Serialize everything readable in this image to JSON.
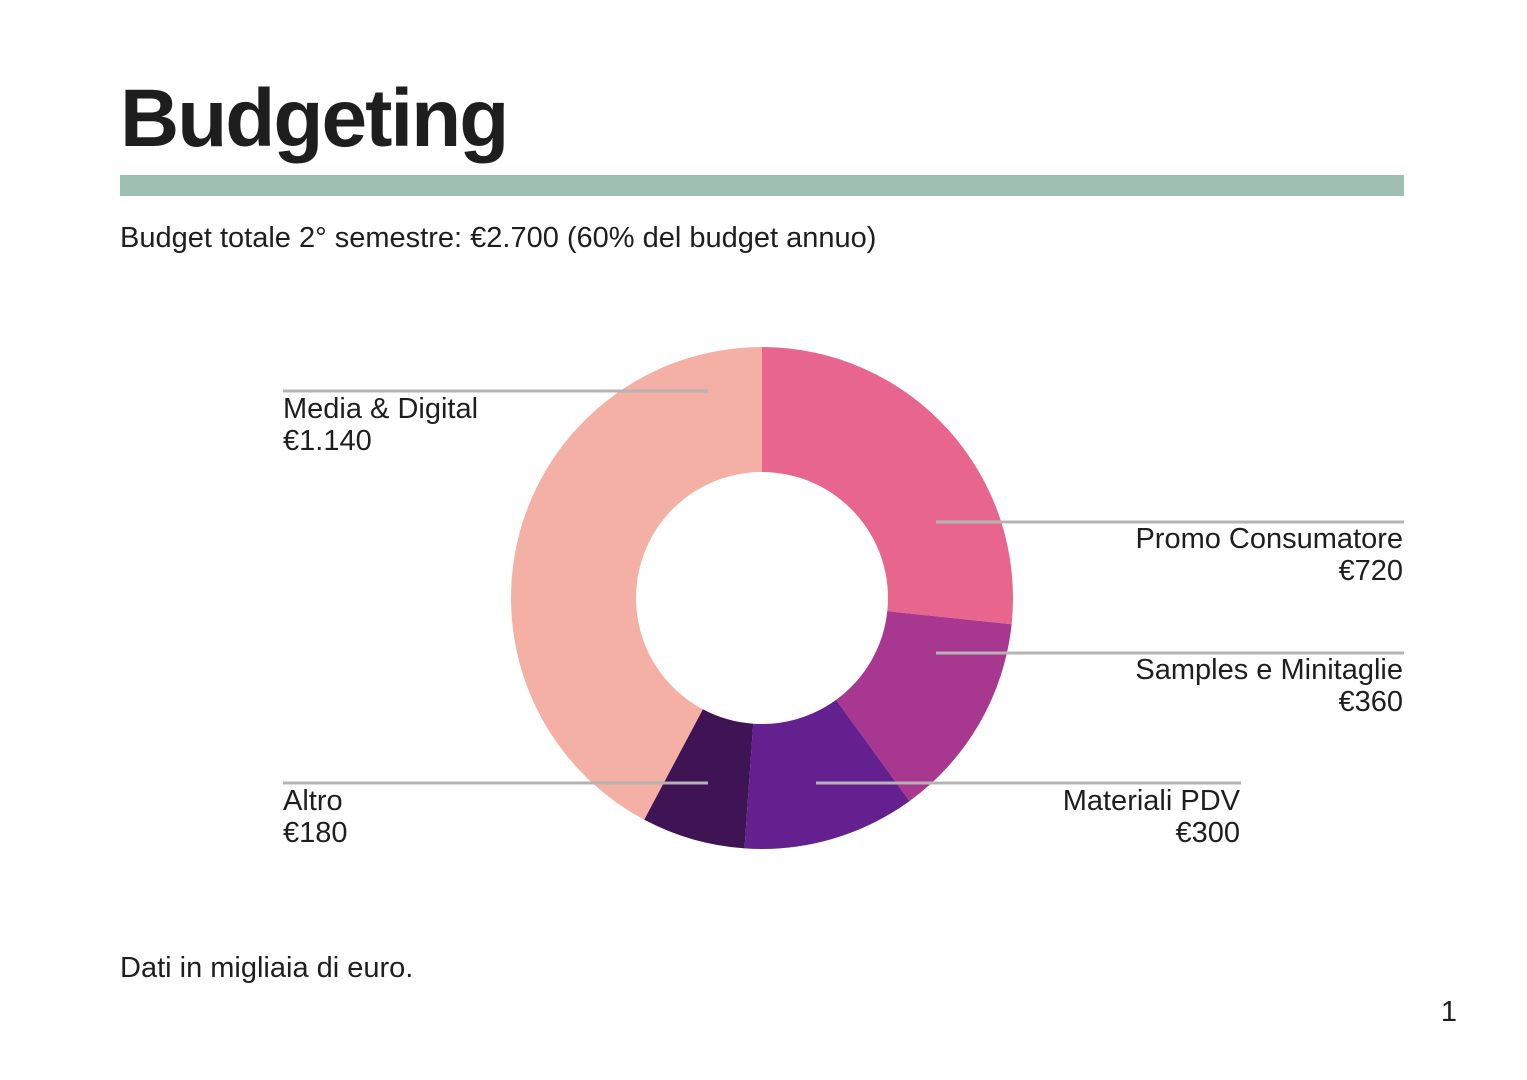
{
  "slide": {
    "title": "Budgeting",
    "subtitle": "Budget totale 2° semestre: €2.700 (60% del budget annuo)",
    "footnote": "Dati in migliaia di euro.",
    "page_number": "1",
    "accent_color": "#9fbfb2"
  },
  "chart_data": {
    "type": "pie",
    "variant": "donut",
    "series": [
      {
        "name": "Promo Consumatore",
        "label": "€720",
        "value": 720,
        "color": "#e8668e"
      },
      {
        "name": "Samples e Minitaglie",
        "label": "€360",
        "value": 360,
        "color": "#a8388f"
      },
      {
        "name": "Materiali PDV",
        "label": "€300",
        "value": 300,
        "color": "#64208f"
      },
      {
        "name": "Altro",
        "label": "€180",
        "value": 180,
        "color": "#3f1455"
      },
      {
        "name": "Media & Digital",
        "label": "€1.140",
        "value": 1140,
        "color": "#f4b0a5"
      }
    ]
  }
}
